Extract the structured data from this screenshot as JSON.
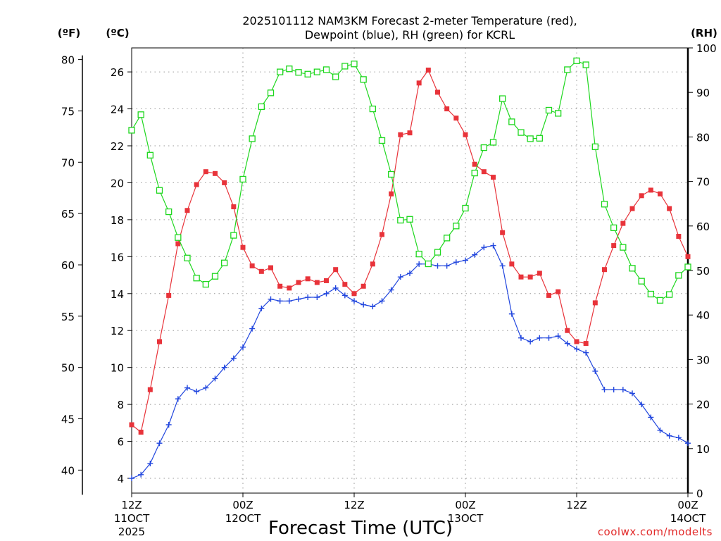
{
  "chart_data": {
    "type": "line",
    "title_lines": [
      "2025101112 NAM3KM Forecast 2-meter Temperature (red),",
      "Dewpoint (blue), RH (green) for KCRL"
    ],
    "unit_labels": {
      "fahrenheit": "(ºF)",
      "celsius": "(ºC)",
      "rh": "(RH)"
    },
    "xlabel": "Forecast Time (UTC)",
    "credit": "coolwx.com/modelts",
    "x_range_hours": [
      0,
      60
    ],
    "x_ticks": [
      {
        "h": 0,
        "line1": "12Z",
        "line2": "11OCT",
        "line3": "2025"
      },
      {
        "h": 12,
        "line1": "00Z",
        "line2": "12OCT",
        "line3": ""
      },
      {
        "h": 24,
        "line1": "12Z",
        "line2": "",
        "line3": ""
      },
      {
        "h": 36,
        "line1": "00Z",
        "line2": "13OCT",
        "line3": ""
      },
      {
        "h": 48,
        "line1": "12Z",
        "line2": "",
        "line3": ""
      },
      {
        "h": 60,
        "line1": "00Z",
        "line2": "14OCT",
        "line3": ""
      }
    ],
    "celsius_axis": {
      "ylim": [
        3.2,
        27.3
      ],
      "ticks": [
        4,
        6,
        8,
        10,
        12,
        14,
        16,
        18,
        20,
        22,
        24,
        26
      ]
    },
    "fahrenheit_axis": {
      "ticks": [
        40,
        45,
        50,
        55,
        60,
        65,
        70,
        75,
        80
      ]
    },
    "rh_axis": {
      "ylim": [
        0,
        100
      ],
      "ticks": [
        0,
        10,
        20,
        30,
        40,
        50,
        60,
        70,
        80,
        90,
        100
      ]
    },
    "series": [
      {
        "name": "2-meter Temperature",
        "color": "#e8333a",
        "axis": "celsius",
        "marker": "filled-square",
        "values": [
          6.9,
          6.5,
          8.8,
          11.4,
          13.9,
          16.7,
          18.5,
          19.9,
          20.6,
          20.5,
          20.0,
          18.7,
          16.5,
          15.5,
          15.2,
          15.4,
          14.4,
          14.3,
          14.6,
          14.8,
          14.6,
          14.7,
          15.3,
          14.5,
          14.0,
          14.4,
          15.6,
          17.2,
          19.4,
          22.6,
          22.7,
          25.4,
          26.1,
          24.9,
          24.0,
          23.5,
          22.6,
          21.0,
          20.6,
          20.3,
          17.3,
          15.6,
          14.9,
          14.9,
          15.1,
          13.9,
          14.1,
          12.0,
          11.4,
          11.3,
          13.5,
          15.3,
          16.6,
          17.8,
          18.6,
          19.3,
          19.6,
          19.4,
          18.6,
          17.1,
          16.0
        ]
      },
      {
        "name": "Dewpoint",
        "color": "#2146de",
        "axis": "celsius",
        "marker": "plus",
        "values": [
          4.0,
          4.2,
          4.8,
          5.9,
          6.9,
          8.3,
          8.9,
          8.7,
          8.9,
          9.4,
          10.0,
          10.5,
          11.1,
          12.1,
          13.2,
          13.7,
          13.6,
          13.6,
          13.7,
          13.8,
          13.8,
          14.0,
          14.3,
          13.9,
          13.6,
          13.4,
          13.3,
          13.6,
          14.2,
          14.9,
          15.1,
          15.6,
          15.6,
          15.5,
          15.5,
          15.7,
          15.8,
          16.1,
          16.5,
          16.6,
          15.5,
          12.9,
          11.6,
          11.4,
          11.6,
          11.6,
          11.7,
          11.3,
          11.0,
          10.8,
          9.8,
          8.8,
          8.8,
          8.8,
          8.6,
          8.0,
          7.3,
          6.6,
          6.3,
          6.2,
          5.9
        ]
      },
      {
        "name": "Relative Humidity",
        "color": "#1ed71e",
        "axis": "rh",
        "marker": "open-square",
        "values": [
          81.5,
          85.0,
          75.9,
          68.0,
          63.2,
          57.4,
          52.8,
          48.3,
          46.9,
          48.7,
          51.7,
          57.9,
          70.5,
          79.6,
          86.8,
          89.9,
          94.6,
          95.3,
          94.5,
          94.1,
          94.6,
          95.1,
          93.5,
          95.9,
          96.4,
          92.9,
          86.3,
          79.2,
          71.6,
          61.3,
          61.5,
          53.7,
          51.5,
          54.1,
          57.3,
          60.0,
          64.0,
          71.9,
          77.6,
          78.8,
          88.6,
          83.4,
          81.0,
          79.6,
          79.7,
          86.0,
          85.3,
          95.1,
          97.1,
          96.2,
          77.8,
          64.9,
          59.6,
          55.2,
          50.5,
          47.6,
          44.7,
          43.3,
          44.6,
          48.9,
          50.8
        ]
      }
    ]
  }
}
